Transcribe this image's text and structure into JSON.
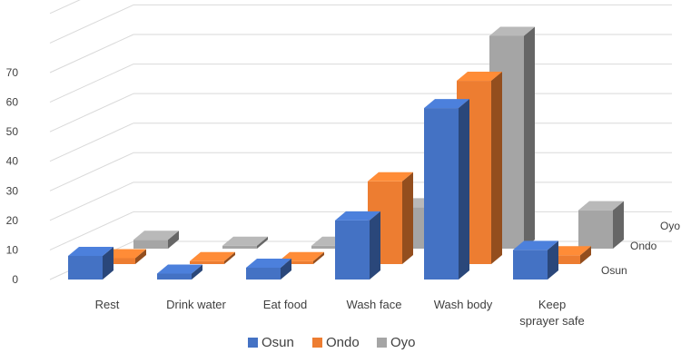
{
  "chart_data": {
    "type": "bar",
    "subtype": "3d-clustered",
    "categories": [
      "Rest",
      "Drink water",
      "Eat food",
      "Wash face",
      "Wash body",
      "Keep sprayer safe"
    ],
    "category_lines": [
      [
        "Rest"
      ],
      [
        "Drink water"
      ],
      [
        "Eat food"
      ],
      [
        "Wash face"
      ],
      [
        "Wash body"
      ],
      [
        "Keep",
        "sprayer safe"
      ]
    ],
    "series": [
      {
        "name": "Osun",
        "values": [
          8,
          2,
          4,
          20,
          58,
          10
        ],
        "color": "#4472C4"
      },
      {
        "name": "Ondo",
        "values": [
          2,
          1,
          1,
          28,
          62,
          3
        ],
        "color": "#ED7D31"
      },
      {
        "name": "Oyo",
        "values": [
          3,
          1,
          1,
          14,
          72,
          13
        ],
        "color": "#A5A5A5"
      }
    ],
    "depth_labels": [
      "Oyo",
      "Ondo",
      "Osun"
    ],
    "y_ticks": [
      "0",
      "10",
      "20",
      "30",
      "40",
      "50",
      "60",
      "70"
    ],
    "ylim": [
      0,
      70
    ],
    "legend_position": "bottom",
    "grid": true
  }
}
